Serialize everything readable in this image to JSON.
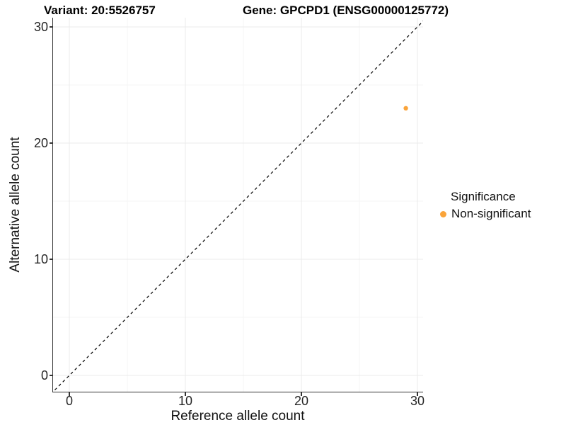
{
  "chart_data": {
    "type": "scatter",
    "titles": {
      "left": "Variant: 20:5526757",
      "right": "Gene: GPCPD1 (ENSG00000125772)"
    },
    "xlabel": "Reference allele count",
    "ylabel": "Alternative allele count",
    "xlim": [
      -1.4,
      30.5
    ],
    "ylim": [
      -1.4,
      30.8
    ],
    "xticks": [
      0,
      10,
      20,
      30
    ],
    "yticks": [
      0,
      10,
      20,
      30
    ],
    "minor_xticks": [
      5,
      15,
      25
    ],
    "minor_yticks": [
      5,
      15,
      25
    ],
    "grid": "major and minor gridlines, light gray on white",
    "identity_line": {
      "equation": "y = x",
      "style": "dashed",
      "color": "#000000"
    },
    "series": [
      {
        "name": "Non-significant",
        "color": "#FAA43A",
        "points": [
          [
            29,
            23
          ]
        ]
      }
    ],
    "legend": {
      "title": "Significance",
      "position": "right",
      "items": [
        {
          "label": "Non-significant",
          "color": "#FAA43A",
          "marker": "circle"
        }
      ]
    },
    "colors": {
      "axis_line": "#333333",
      "major_grid": "#EBEBEB",
      "minor_grid": "#F5F5F5",
      "point_orange": "#FAA43A"
    }
  }
}
